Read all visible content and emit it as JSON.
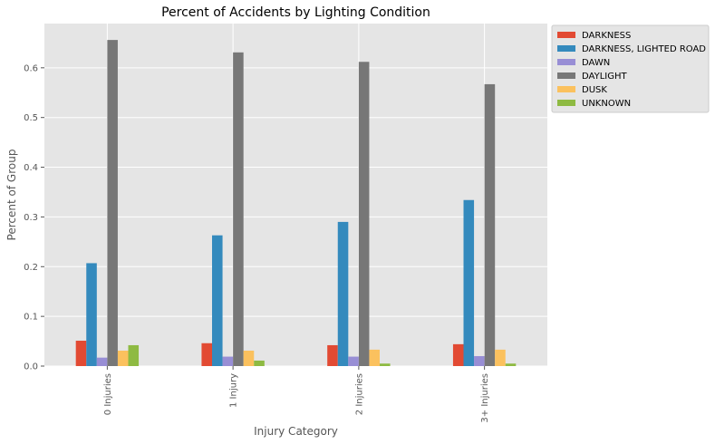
{
  "chart_data": {
    "type": "bar",
    "title": "Percent of Accidents by Lighting Condition",
    "xlabel": "Injury Category",
    "ylabel": "Percent of Group",
    "categories": [
      "0 Injuries",
      "1 Injury",
      "2 Injuries",
      "3+ Injuries"
    ],
    "series": [
      {
        "name": "DARKNESS",
        "color": "#E24A33",
        "values": [
          0.051,
          0.046,
          0.042,
          0.044
        ]
      },
      {
        "name": "DARKNESS, LIGHTED ROAD",
        "color": "#348ABD",
        "values": [
          0.207,
          0.263,
          0.29,
          0.334
        ]
      },
      {
        "name": "DAWN",
        "color": "#988ED5",
        "values": [
          0.017,
          0.019,
          0.019,
          0.02
        ]
      },
      {
        "name": "DAYLIGHT",
        "color": "#777777",
        "values": [
          0.656,
          0.631,
          0.612,
          0.567
        ]
      },
      {
        "name": "DUSK",
        "color": "#FBC15E",
        "values": [
          0.031,
          0.031,
          0.033,
          0.033
        ]
      },
      {
        "name": "UNKNOWN",
        "color": "#8EBA42",
        "values": [
          0.042,
          0.011,
          0.005,
          0.005
        ]
      }
    ],
    "yticks": [
      "0.0",
      "0.1",
      "0.2",
      "0.3",
      "0.4",
      "0.5",
      "0.6"
    ],
    "ylim": [
      0,
      0.689
    ],
    "grid": true,
    "legend_position": "outside-top-right",
    "background_color": "#E5E5E5",
    "grid_color": "#FFFFFF"
  }
}
